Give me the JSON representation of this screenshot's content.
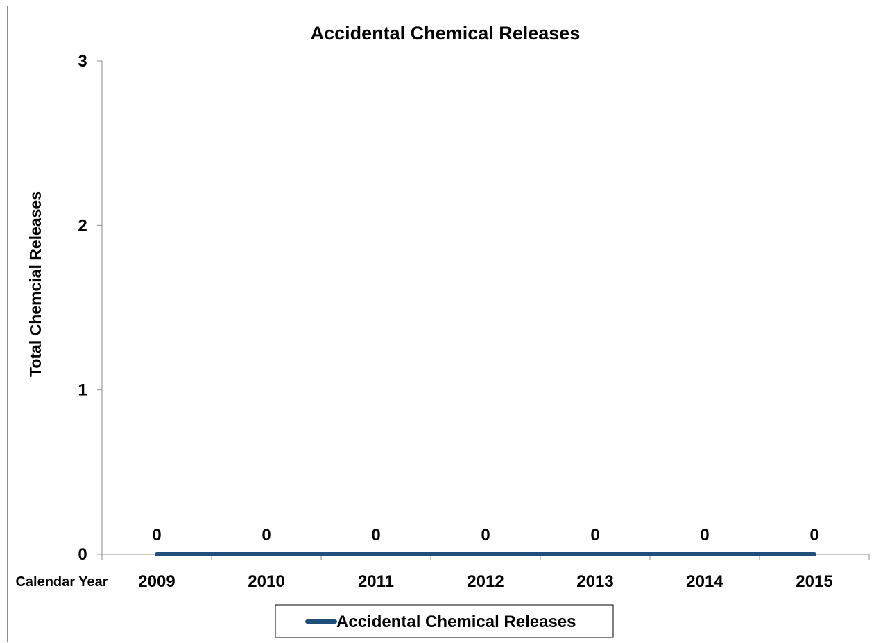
{
  "chart_data": {
    "type": "line",
    "title": "Accidental Chemical Releases",
    "xlabel": "Calendar Year",
    "ylabel": "Total Chemcial Releases",
    "categories": [
      "2009",
      "2010",
      "2011",
      "2012",
      "2013",
      "2014",
      "2015"
    ],
    "series": [
      {
        "name": "Accidental Chemical Releases",
        "values": [
          0,
          0,
          0,
          0,
          0,
          0,
          0
        ],
        "color": "#1f4e79"
      }
    ],
    "data_labels": [
      "0",
      "0",
      "0",
      "0",
      "0",
      "0",
      "0"
    ],
    "ylim": [
      0,
      3
    ],
    "yticks": [
      "0",
      "1",
      "2",
      "3"
    ],
    "grid": false,
    "legend_position": "bottom"
  }
}
